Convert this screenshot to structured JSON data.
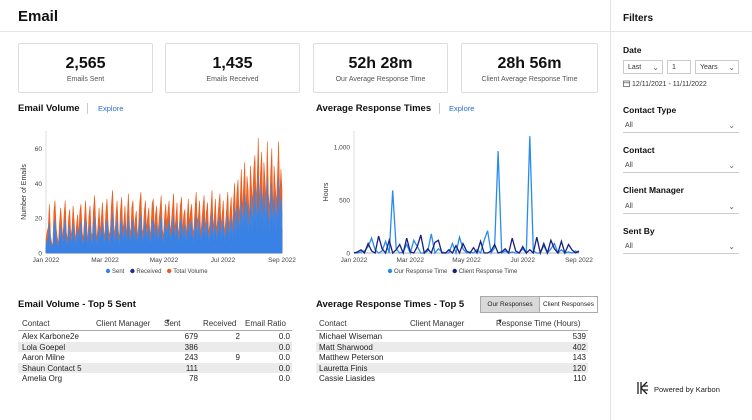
{
  "page": {
    "title": "Email"
  },
  "kpis": [
    {
      "value": "2,565",
      "label": "Emails Sent"
    },
    {
      "value": "1,435",
      "label": "Emails Received"
    },
    {
      "value": "52h 28m",
      "label": "Our Average Response Time"
    },
    {
      "value": "28h 56m",
      "label": "Client Average Response Time"
    }
  ],
  "volume_section": {
    "title": "Email Volume",
    "explore": "Explore"
  },
  "response_section": {
    "title": "Average Response Times",
    "explore": "Explore"
  },
  "chart_data": [
    {
      "type": "area",
      "title": "Email Volume",
      "ylabel": "Number of Emails",
      "xlabel": "",
      "ylim": [
        0,
        70
      ],
      "yticks": [
        0,
        20,
        40,
        60
      ],
      "xtick_labels": [
        "Jan 2022",
        "Mar 2022",
        "May 2022",
        "Jul 2022",
        "Sep 2022"
      ],
      "x_period": "Jan 2022 - Sep 2022 (daily)",
      "legend": [
        "Sent",
        "Received",
        "Total Volume"
      ],
      "series": [
        {
          "name": "Total Volume",
          "color": "#ec5b1c",
          "values": [
            8,
            12,
            15,
            28,
            10,
            6,
            4,
            24,
            30,
            14,
            9,
            5,
            18,
            26,
            16,
            8,
            22,
            30,
            12,
            7,
            20,
            25,
            9,
            14,
            27,
            18,
            6,
            16,
            22,
            10,
            24,
            28,
            12,
            8,
            19,
            30,
            16,
            6,
            21,
            27,
            12,
            9,
            24,
            33,
            18,
            7,
            15,
            26,
            11,
            20,
            29,
            14,
            8,
            23,
            31,
            17,
            9,
            14,
            28,
            36,
            16,
            10,
            22,
            30,
            13,
            8,
            25,
            32,
            12,
            18,
            27,
            9,
            21,
            34,
            15,
            10,
            26,
            30,
            12,
            19,
            24,
            8,
            16,
            29,
            35,
            14,
            11,
            23,
            30,
            13,
            20,
            26,
            9,
            15,
            28,
            31,
            12,
            22,
            27,
            10,
            18,
            25,
            33,
            14,
            9,
            21,
            28,
            16,
            24,
            30,
            11,
            17,
            26,
            34,
            13,
            20,
            29,
            10,
            15,
            27,
            32,
            12,
            22,
            25,
            9,
            19,
            31,
            16,
            24,
            28,
            11,
            14,
            26,
            35,
            17,
            21,
            30,
            10,
            18,
            27,
            33,
            13,
            23,
            29,
            11,
            16,
            25,
            36,
            14,
            20,
            31,
            12,
            19,
            28,
            34,
            15,
            22,
            30,
            11,
            17,
            26,
            35,
            13,
            24,
            32,
            12,
            28,
            40,
            18,
            34,
            42,
            20,
            30,
            48,
            24,
            38,
            52,
            22,
            44,
            36,
            18,
            50,
            38,
            28,
            48,
            56,
            30,
            42,
            66,
            26,
            46,
            58,
            22,
            52,
            40,
            30,
            64,
            34,
            24,
            46,
            60,
            20,
            50,
            38,
            28,
            44,
            64,
            30,
            48,
            36
          ]
        },
        {
          "name": "Received",
          "color": "#1f2f9a",
          "values": [
            3,
            5,
            6,
            10,
            4,
            2,
            2,
            9,
            11,
            5,
            4,
            2,
            7,
            10,
            6,
            3,
            8,
            11,
            5,
            3,
            8,
            9,
            4,
            5,
            10,
            7,
            3,
            6,
            8,
            4,
            9,
            10,
            5,
            3,
            7,
            11,
            6,
            3,
            8,
            10,
            5,
            4,
            9,
            12,
            7,
            3,
            6,
            10,
            4,
            8,
            11,
            5,
            3,
            9,
            12,
            6,
            4,
            5,
            10,
            13,
            6,
            4,
            8,
            11,
            5,
            3,
            9,
            12,
            5,
            7,
            10,
            4,
            8,
            13,
            6,
            4,
            10,
            11,
            5,
            7,
            9,
            3,
            6,
            11,
            13,
            5,
            4,
            9,
            11,
            5,
            8,
            10,
            4,
            6,
            10,
            12,
            5,
            8,
            10,
            4,
            7,
            9,
            12,
            5,
            4,
            8,
            10,
            6,
            9,
            11,
            4,
            6,
            10,
            13,
            5,
            8,
            11,
            4,
            6,
            10,
            12,
            5,
            8,
            9,
            4,
            7,
            12,
            6,
            9,
            10,
            4,
            5,
            10,
            13,
            6,
            8,
            11,
            4,
            7,
            10,
            12,
            5,
            9,
            11,
            4,
            6,
            9,
            13,
            5,
            8,
            12,
            5,
            7,
            10,
            13,
            6,
            8,
            11,
            4,
            6,
            10,
            13,
            5,
            9,
            12,
            5,
            10,
            14,
            7,
            12,
            15,
            8,
            11,
            17,
            9,
            14,
            18,
            8,
            15,
            13,
            7,
            17,
            14,
            10,
            17,
            19,
            11,
            15,
            22,
            10,
            16,
            20,
            8,
            18,
            14,
            11,
            21,
            12,
            9,
            16,
            20,
            8,
            17,
            13,
            10,
            15,
            21,
            11,
            16,
            13
          ]
        },
        {
          "name": "Sent",
          "color": "#3a86e8",
          "values": [
            5,
            7,
            9,
            17,
            6,
            4,
            2,
            15,
            19,
            9,
            5,
            3,
            11,
            16,
            10,
            5,
            14,
            19,
            7,
            4,
            12,
            16,
            5,
            9,
            17,
            11,
            3,
            10,
            14,
            6,
            15,
            18,
            7,
            5,
            12,
            19,
            10,
            3,
            13,
            17,
            7,
            5,
            15,
            21,
            11,
            4,
            9,
            16,
            7,
            12,
            18,
            9,
            5,
            14,
            19,
            11,
            5,
            9,
            18,
            23,
            10,
            6,
            14,
            19,
            8,
            5,
            16,
            20,
            7,
            11,
            17,
            5,
            13,
            21,
            9,
            6,
            16,
            19,
            7,
            12,
            15,
            5,
            10,
            18,
            22,
            9,
            7,
            14,
            19,
            8,
            12,
            16,
            5,
            9,
            18,
            19,
            7,
            14,
            17,
            6,
            11,
            16,
            21,
            9,
            5,
            13,
            18,
            10,
            15,
            19,
            7,
            11,
            16,
            21,
            8,
            12,
            18,
            6,
            9,
            17,
            20,
            7,
            14,
            16,
            5,
            12,
            19,
            10,
            15,
            18,
            7,
            9,
            16,
            22,
            11,
            13,
            19,
            6,
            11,
            17,
            21,
            8,
            14,
            18,
            7,
            10,
            16,
            23,
            9,
            12,
            19,
            7,
            12,
            18,
            21,
            9,
            14,
            19,
            7,
            11,
            16,
            22,
            8,
            15,
            20,
            7,
            18,
            26,
            11,
            22,
            27,
            12,
            19,
            31,
            15,
            24,
            34,
            14,
            29,
            23,
            11,
            33,
            24,
            18,
            31,
            37,
            19,
            27,
            44,
            16,
            30,
            38,
            14,
            34,
            26,
            19,
            43,
            22,
            15,
            30,
            40,
            12,
            33,
            25,
            18,
            29,
            43,
            19,
            32,
            23
          ]
        }
      ]
    },
    {
      "type": "line",
      "title": "Average Response Times",
      "ylabel": "Hours",
      "xlabel": "",
      "ylim": [
        0,
        1150
      ],
      "yticks": [
        0,
        500,
        1000
      ],
      "ytick_labels": [
        "0",
        "500",
        "1,000"
      ],
      "xtick_labels": [
        "Jan 2022",
        "Mar 2022",
        "May 2022",
        "Jul 2022",
        "Sep 2022"
      ],
      "legend": [
        "Our Response Time",
        "Client Response Time"
      ],
      "series": [
        {
          "name": "Our Response Time",
          "color": "#2a8bef",
          "values": [
            0,
            0,
            10,
            20,
            60,
            140,
            30,
            0,
            20,
            110,
            0,
            590,
            40,
            0,
            10,
            80,
            0,
            120,
            60,
            0,
            0,
            20,
            180,
            0,
            40,
            10,
            0,
            0,
            90,
            0,
            150,
            40,
            0,
            10,
            0,
            30,
            0,
            120,
            210,
            0,
            50,
            960,
            0,
            20,
            0,
            10,
            0,
            0,
            40,
            0,
            1100,
            20,
            0,
            0,
            70,
            0,
            40,
            90,
            0,
            30,
            0,
            10,
            0,
            20,
            0
          ]
        },
        {
          "name": "Client Response Time",
          "color": "#17207e",
          "values": [
            0,
            10,
            30,
            0,
            90,
            20,
            0,
            160,
            40,
            0,
            120,
            0,
            30,
            80,
            0,
            140,
            10,
            0,
            60,
            170,
            0,
            40,
            0,
            100,
            120,
            0,
            0,
            30,
            0,
            70,
            0,
            90,
            20,
            0,
            50,
            0,
            110,
            0,
            0,
            20,
            80,
            0,
            10,
            40,
            0,
            140,
            20,
            0,
            60,
            0,
            30,
            0,
            150,
            0,
            90,
            0,
            120,
            40,
            0,
            110,
            0,
            80,
            30,
            0,
            20
          ]
        }
      ]
    }
  ],
  "top5_volume": {
    "title": "Email Volume - Top 5 Sent",
    "columns": [
      "Contact",
      "Client Manager",
      "Sent",
      "Received",
      "Email Ratio"
    ],
    "rows": [
      [
        "Alex Karbone2e",
        "",
        "679",
        "2",
        "0.0"
      ],
      [
        "Lola Goepel",
        "",
        "386",
        "",
        "0.0"
      ],
      [
        "Aaron Milne",
        "",
        "243",
        "9",
        "0.0"
      ],
      [
        "Shaun Contact 5",
        "",
        "111",
        "",
        "0.0"
      ],
      [
        "Amelia Org",
        "",
        "78",
        "",
        "0.0"
      ]
    ]
  },
  "top5_response": {
    "title": "Average Response Times - Top 5",
    "toggle": [
      "Our Responses",
      "Client Responses"
    ],
    "columns": [
      "Contact",
      "Client Manager",
      "Response Time (Hours)"
    ],
    "rows": [
      [
        "Michael Wiseman",
        "",
        "539"
      ],
      [
        "Matt Sharwood",
        "",
        "402"
      ],
      [
        "Matthew Peterson",
        "",
        "143"
      ],
      [
        "Lauretta Finis",
        "",
        "120"
      ],
      [
        "Cassie Liasides",
        "",
        "110"
      ]
    ]
  },
  "filters": {
    "title": "Filters",
    "date": {
      "label": "Date",
      "mode": "Last",
      "count": "1",
      "unit": "Years",
      "range": "12/11/2021 - 11/11/2022"
    },
    "contact_type": {
      "label": "Contact Type",
      "value": "All"
    },
    "contact": {
      "label": "Contact",
      "value": "All"
    },
    "client_manager": {
      "label": "Client Manager",
      "value": "All"
    },
    "sent_by": {
      "label": "Sent By",
      "value": "All"
    }
  },
  "footer": {
    "powered": "Powered by Karbon"
  },
  "colors": {
    "accent": "#2b6fd6",
    "orange": "#ec5b1c",
    "navy": "#1f2f9a",
    "blue": "#3a86e8"
  }
}
